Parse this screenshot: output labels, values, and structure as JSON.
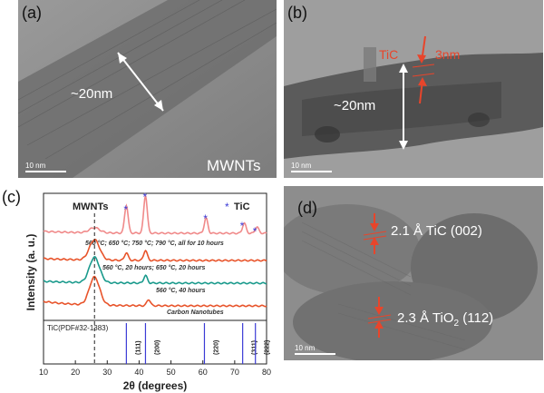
{
  "panel_a": {
    "label": "(a)",
    "diameter": "~20nm",
    "name": "MWNTs",
    "scale_bar": "10 nm"
  },
  "panel_b": {
    "label": "(b)",
    "diameter": "~20nm",
    "coating": "TiC",
    "thickness": "3nm",
    "scale_bar": "10 nm"
  },
  "panel_c": {
    "label": "(c)",
    "mwnt_marker": "MWNTs",
    "tic_marker": "TiC",
    "ylabel": "Intensity (a. u.)",
    "xlabel": "2θ (degrees)",
    "curve_labels": [
      "560 °C; 650 °C; 750 °C; 790 °C, all for 10 hours",
      "560 °C, 20 hours; 650 °C, 20 hours",
      "560 °C, 40 hours",
      "Carbon Nanotubes"
    ],
    "reference": "TiC(PDF#32-1383)",
    "reference_peaks": [
      "(111)",
      "(200)",
      "(220)",
      "(311)",
      "(222)"
    ],
    "x_ticks": [
      "10",
      "20",
      "30",
      "40",
      "50",
      "60",
      "70",
      "80"
    ],
    "colors": {
      "curve1": "#f08a8a",
      "curve2": "#e8542b",
      "curve3": "#1a9a8c",
      "curve4": "#e8542b",
      "markers": "#3b3bd6"
    }
  },
  "panel_d": {
    "label": "(d)",
    "spacing_1": "2.1 Å TiC (002)",
    "spacing_2_pre": "2.3 Å TiO",
    "spacing_2_sub": "2",
    "spacing_2_post": " (112)",
    "scale_bar": "10 nm"
  },
  "chart_data": {
    "type": "line",
    "xlabel": "2θ (degrees)",
    "ylabel": "Intensity (a. u.)",
    "xlim": [
      10,
      80
    ],
    "series": [
      {
        "name": "560 °C; 650 °C; 750 °C; 790 °C, all for 10 hours",
        "peaks": [
          {
            "x": 26,
            "h": 0.4
          },
          {
            "x": 36,
            "h": 2.2
          },
          {
            "x": 42,
            "h": 3.0
          },
          {
            "x": 61,
            "h": 1.2
          },
          {
            "x": 73,
            "h": 0.8
          },
          {
            "x": 77,
            "h": 0.5
          }
        ]
      },
      {
        "name": "560 °C, 20 hours; 650 °C, 20 hours",
        "peaks": [
          {
            "x": 26,
            "h": 1.6
          },
          {
            "x": 36,
            "h": 0.6
          },
          {
            "x": 42,
            "h": 0.8
          }
        ]
      },
      {
        "name": "560 °C, 40 hours",
        "peaks": [
          {
            "x": 26,
            "h": 2.0
          },
          {
            "x": 42,
            "h": 0.6
          }
        ]
      },
      {
        "name": "Carbon Nanotubes",
        "peaks": [
          {
            "x": 26,
            "h": 2.2
          },
          {
            "x": 43,
            "h": 0.5
          }
        ]
      }
    ],
    "tic_peaks": [
      36,
      42,
      61,
      72.5,
      76.5
    ],
    "reference_lines": [
      {
        "x": 36,
        "label": "(111)"
      },
      {
        "x": 42,
        "label": "(200)"
      },
      {
        "x": 60.5,
        "label": "(220)"
      },
      {
        "x": 72.5,
        "label": "(311)"
      },
      {
        "x": 76.5,
        "label": "(222)"
      }
    ],
    "mwnt_line_x": 26
  }
}
